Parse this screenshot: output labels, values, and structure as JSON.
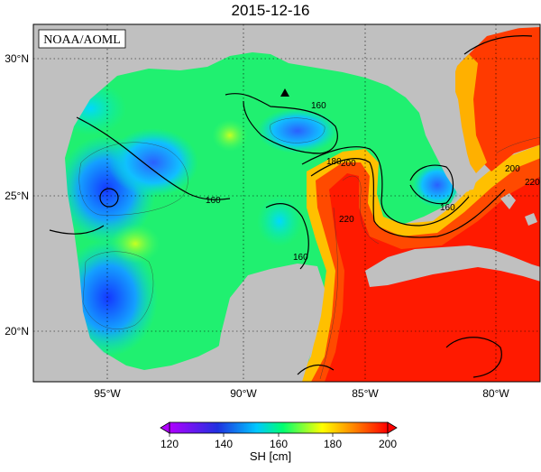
{
  "title": "2015-12-16",
  "credit": "NOAA/AOML",
  "map": {
    "lon_ticks": [
      "95°W",
      "90°W",
      "85°W",
      "80°W"
    ],
    "lat_ticks": [
      "30°N",
      "25°N",
      "20°N"
    ],
    "contour_labels": [
      "160",
      "160",
      "160",
      "180",
      "200",
      "200",
      "220",
      "220",
      "160"
    ],
    "marker": "triangle"
  },
  "colorbar": {
    "ticks": [
      "120",
      "140",
      "160",
      "180",
      "200"
    ],
    "label": "SH [cm]",
    "min": 120,
    "max": 200,
    "colors": [
      "#b000ff",
      "#2030e0",
      "#00c8ff",
      "#00ff70",
      "#ffff00",
      "#ff8000",
      "#ff0000"
    ]
  },
  "colors": {
    "land": "#c0c0c0",
    "ocean_blank": "#ffffff",
    "warm": "#ff1a00",
    "cool": "#3060ff"
  }
}
